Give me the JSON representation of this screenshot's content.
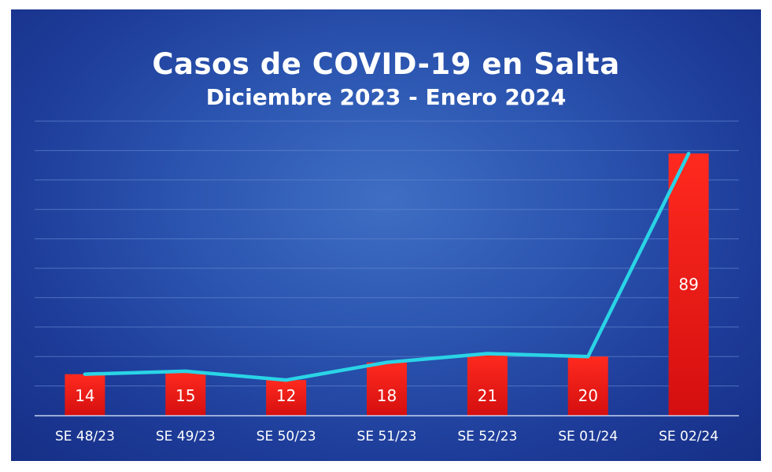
{
  "chart_data": {
    "type": "bar",
    "title": "Casos de COVID-19 en Salta",
    "subtitle": "Diciembre 2023 - Enero 2024",
    "categories": [
      "SE 48/23",
      "SE 49/23",
      "SE 50/23",
      "SE 51/23",
      "SE 52/23",
      "SE 01/24",
      "SE 02/24"
    ],
    "series": [
      {
        "values": [
          14,
          15,
          12,
          18,
          21,
          20,
          89
        ],
        "render": "bar+line"
      }
    ],
    "ylim": [
      0,
      100
    ],
    "grid": true,
    "legend": "none",
    "colors": {
      "bar_top": "#ff2a1f",
      "bar_bottom": "#d40f0f",
      "line": "#2ad4e6",
      "grid": "#5c82cc",
      "axis": "#c8d6f2"
    }
  }
}
